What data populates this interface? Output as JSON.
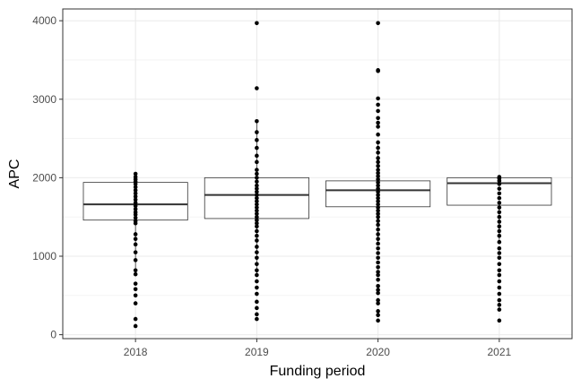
{
  "chart_data": {
    "type": "box",
    "xlabel": "Funding period",
    "ylabel": "APC",
    "categories": [
      "2018",
      "2019",
      "2020",
      "2021"
    ],
    "ylim": [
      -50,
      4150
    ],
    "yticks": [
      0,
      1000,
      2000,
      3000,
      4000
    ],
    "grid": true,
    "legend": "none",
    "boxes": [
      {
        "category": "2018",
        "q1": 1460,
        "median": 1660,
        "q3": 1940
      },
      {
        "category": "2019",
        "q1": 1480,
        "median": 1780,
        "q3": 2000
      },
      {
        "category": "2020",
        "q1": 1630,
        "median": 1840,
        "q3": 1960
      },
      {
        "category": "2021",
        "q1": 1650,
        "median": 1930,
        "q3": 2000
      }
    ],
    "points": [
      {
        "category": "2018",
        "values": [
          110,
          200,
          400,
          500,
          580,
          650,
          770,
          820,
          950,
          1050,
          1150,
          1220,
          1280,
          1420,
          1450,
          1490,
          1530,
          1560,
          1600,
          1640,
          1680,
          1720,
          1760,
          1800,
          1840,
          1880,
          1920,
          1950,
          1980,
          2010,
          2050
        ]
      },
      {
        "category": "2019",
        "values": [
          200,
          260,
          340,
          420,
          520,
          600,
          680,
          760,
          820,
          900,
          980,
          1050,
          1120,
          1200,
          1260,
          1320,
          1380,
          1420,
          1460,
          1500,
          1540,
          1580,
          1620,
          1660,
          1700,
          1740,
          1780,
          1820,
          1860,
          1900,
          1950,
          2000,
          2050,
          2100,
          2200,
          2280,
          2380,
          2480,
          2580,
          2720,
          3140,
          3970
        ]
      },
      {
        "category": "2020",
        "values": [
          180,
          250,
          300,
          400,
          440,
          530,
          570,
          620,
          700,
          760,
          800,
          860,
          920,
          980,
          1040,
          1100,
          1160,
          1220,
          1280,
          1340,
          1400,
          1450,
          1500,
          1540,
          1580,
          1620,
          1660,
          1700,
          1740,
          1780,
          1820,
          1860,
          1900,
          1940,
          1980,
          2020,
          2060,
          2100,
          2150,
          2200,
          2250,
          2320,
          2380,
          2450,
          2550,
          2650,
          2700,
          2760,
          2850,
          2930,
          3010,
          3360,
          3370,
          3970
        ]
      },
      {
        "category": "2021",
        "values": [
          180,
          320,
          380,
          440,
          520,
          600,
          680,
          760,
          820,
          900,
          980,
          1040,
          1100,
          1180,
          1260,
          1320,
          1380,
          1440,
          1500,
          1560,
          1620,
          1680,
          1740,
          1800,
          1860,
          1920,
          1960,
          1990,
          2010
        ]
      }
    ]
  }
}
